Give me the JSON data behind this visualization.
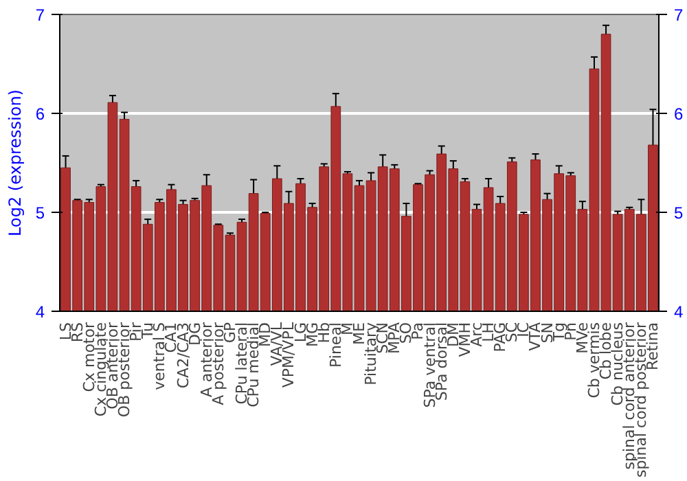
{
  "chart_data": {
    "type": "bar",
    "ylabel": "Log2 (expression)",
    "categories": [
      "LS",
      "RS",
      "Cx motor",
      "Cx cingulate",
      "OB anterior",
      "OB posterior",
      "Pir",
      "Tu",
      "ventral S",
      "CA1",
      "CA2/CA3",
      "DG",
      "A anterior",
      "A posterior",
      "GP",
      "CPu lateral",
      "CPu medial",
      "MD",
      "VA/VL",
      "VPM/VPL",
      "LG",
      "MG",
      "Hb",
      "Pineal",
      "M",
      "ME",
      "Pituitary",
      "SCN",
      "MPA",
      "SO",
      "Pa",
      "SPa ventral",
      "SPa dorsal",
      "DM",
      "VMH",
      "Arc",
      "LH",
      "PAG",
      "SC",
      "IC",
      "VTA",
      "SN",
      "Tg",
      "Pn",
      "MVe",
      "Cb vermis",
      "Cb lobe",
      "Cb nucleus",
      "spinal cord anterior",
      "spinal cord posterior",
      "Retina"
    ],
    "values": [
      5.45,
      5.12,
      5.1,
      5.26,
      6.11,
      5.94,
      5.26,
      4.88,
      5.1,
      5.23,
      5.08,
      5.12,
      5.27,
      4.87,
      4.77,
      4.9,
      5.19,
      4.99,
      5.34,
      5.09,
      5.29,
      5.05,
      5.46,
      6.07,
      5.39,
      5.27,
      5.32,
      5.46,
      5.44,
      4.96,
      5.28,
      5.38,
      5.59,
      5.44,
      5.31,
      5.03,
      5.25,
      5.09,
      5.51,
      4.98,
      5.53,
      5.13,
      5.39,
      5.37,
      5.03,
      6.45,
      6.8,
      4.98,
      5.03,
      4.98,
      5.68
    ],
    "errors": [
      0.12,
      0.01,
      0.03,
      0.02,
      0.07,
      0.07,
      0.06,
      0.05,
      0.03,
      0.05,
      0.04,
      0.02,
      0.11,
      0.01,
      0.02,
      0.03,
      0.14,
      0.01,
      0.13,
      0.12,
      0.05,
      0.04,
      0.03,
      0.13,
      0.02,
      0.05,
      0.08,
      0.12,
      0.04,
      0.13,
      0.01,
      0.04,
      0.08,
      0.08,
      0.03,
      0.05,
      0.09,
      0.07,
      0.04,
      0.02,
      0.06,
      0.06,
      0.08,
      0.03,
      0.08,
      0.12,
      0.09,
      0.03,
      0.02,
      0.15,
      0.36
    ],
    "color": "#b03030",
    "ylim": [
      4,
      7
    ],
    "yticks": [
      4,
      5,
      6,
      7
    ],
    "y2lim": [
      4,
      7
    ],
    "y2ticks": [
      4,
      5,
      6,
      7
    ],
    "grid": "y"
  }
}
